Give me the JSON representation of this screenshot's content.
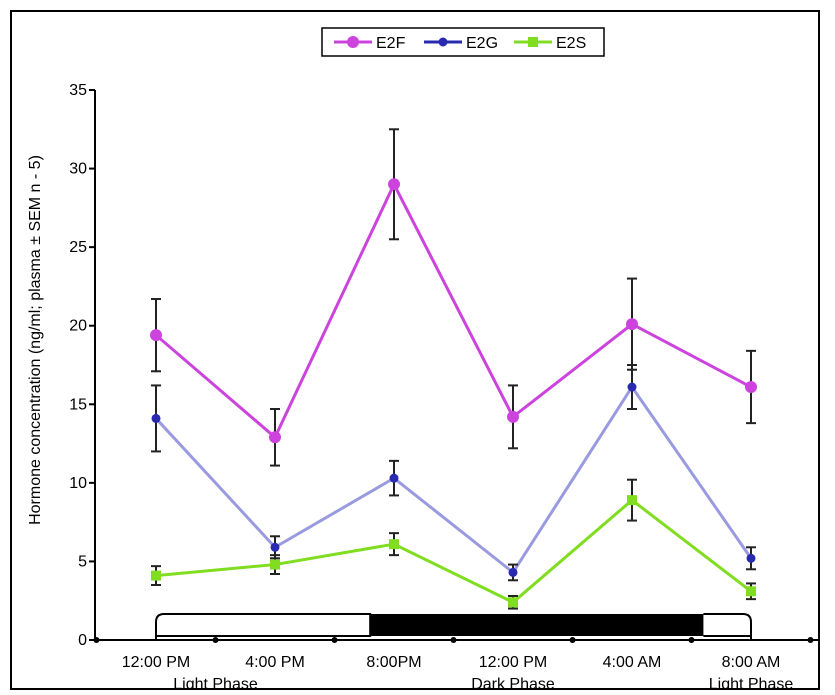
{
  "chart_data": {
    "type": "line",
    "title": "",
    "xlabel": "",
    "ylabel": "Hormone concentration (ng/ml; plasma ± SEM n - 5)",
    "ylim": [
      0,
      35
    ],
    "yticks": [
      0,
      5,
      10,
      15,
      20,
      25,
      30,
      35
    ],
    "categories": [
      "12:00 PM",
      "4:00 PM",
      "8:00PM",
      "12:00 PM",
      "4:00 AM",
      "8:00 AM"
    ],
    "phase_labels": [
      {
        "label": "Light Phase",
        "category_index": 0.5
      },
      {
        "label": "Dark Phase",
        "category_index": 3
      },
      {
        "label": "Light Phase",
        "category_index": 5
      }
    ],
    "phase_bar": {
      "light_start": 0,
      "dark_start": 1.8,
      "dark_end": 4.6,
      "light_end": 5
    },
    "legend_position": "top-center",
    "series": [
      {
        "name": "E2F",
        "color": "#cc44dd",
        "values": [
          19.4,
          12.9,
          29.0,
          14.2,
          20.1,
          16.1
        ],
        "errors": [
          2.3,
          1.8,
          3.5,
          2.0,
          2.9,
          2.3
        ]
      },
      {
        "name": "E2G",
        "color": "#2a2ab0",
        "line_color": "#9a9ae0",
        "values": [
          14.1,
          5.9,
          10.3,
          4.3,
          16.1,
          5.2
        ],
        "errors": [
          2.1,
          0.7,
          1.1,
          0.5,
          1.4,
          0.7
        ]
      },
      {
        "name": "E2S",
        "color": "#80dd20",
        "values": [
          4.1,
          4.8,
          6.1,
          2.4,
          8.9,
          3.1
        ],
        "errors": [
          0.6,
          0.6,
          0.7,
          0.4,
          1.3,
          0.5
        ]
      }
    ]
  }
}
